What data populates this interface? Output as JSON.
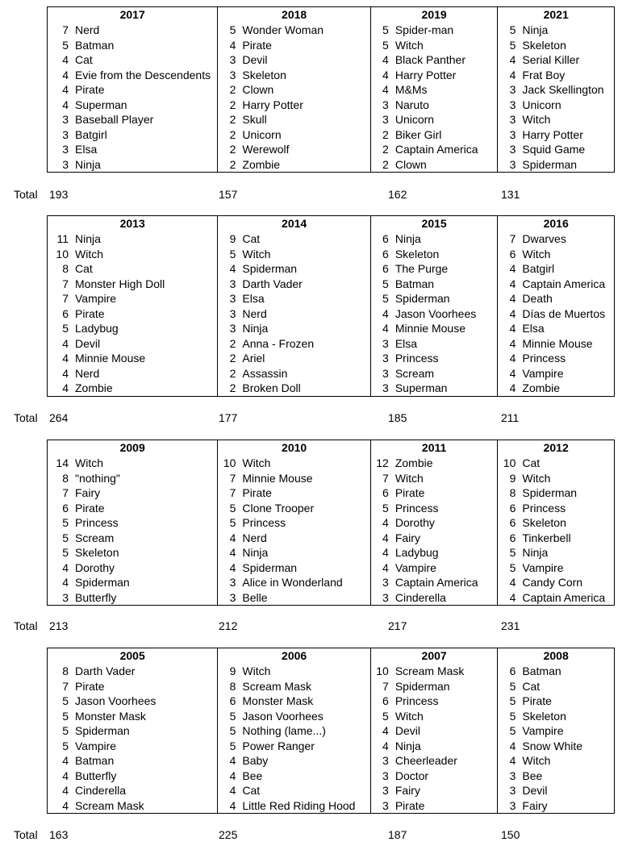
{
  "total_label": "Total",
  "blocks": [
    {
      "years": [
        {
          "year": "2017",
          "total": "193",
          "items": [
            [
              "7",
              "Nerd"
            ],
            [
              "5",
              "Batman"
            ],
            [
              "4",
              "Cat"
            ],
            [
              "4",
              "Evie from the Descendents"
            ],
            [
              "4",
              "Pirate"
            ],
            [
              "4",
              "Superman"
            ],
            [
              "3",
              "Baseball Player"
            ],
            [
              "3",
              "Batgirl"
            ],
            [
              "3",
              "Elsa"
            ],
            [
              "3",
              "Ninja"
            ]
          ]
        },
        {
          "year": "2018",
          "total": "157",
          "items": [
            [
              "5",
              "Wonder Woman"
            ],
            [
              "4",
              "Pirate"
            ],
            [
              "3",
              "Devil"
            ],
            [
              "3",
              "Skeleton"
            ],
            [
              "2",
              "Clown"
            ],
            [
              "2",
              "Harry Potter"
            ],
            [
              "2",
              "Skull"
            ],
            [
              "2",
              "Unicorn"
            ],
            [
              "2",
              "Werewolf"
            ],
            [
              "2",
              "Zombie"
            ]
          ]
        },
        {
          "year": "2019",
          "total": "162",
          "items": [
            [
              "5",
              "Spider-man"
            ],
            [
              "5",
              "Witch"
            ],
            [
              "4",
              "Black Panther"
            ],
            [
              "4",
              "Harry Potter"
            ],
            [
              "4",
              "M&Ms"
            ],
            [
              "3",
              "Naruto"
            ],
            [
              "3",
              "Unicorn"
            ],
            [
              "2",
              "Biker Girl"
            ],
            [
              "2",
              "Captain America"
            ],
            [
              "2",
              "Clown"
            ]
          ]
        },
        {
          "year": "2021",
          "total": "131",
          "items": [
            [
              "5",
              "Ninja"
            ],
            [
              "5",
              "Skeleton"
            ],
            [
              "4",
              "Serial Killer"
            ],
            [
              "4",
              "Frat Boy"
            ],
            [
              "3",
              "Jack Skellington"
            ],
            [
              "3",
              "Unicorn"
            ],
            [
              "3",
              "Witch"
            ],
            [
              "3",
              "Harry Potter"
            ],
            [
              "3",
              "Squid Game"
            ],
            [
              "3",
              "Spiderman"
            ]
          ]
        }
      ]
    },
    {
      "years": [
        {
          "year": "2013",
          "total": "264",
          "items": [
            [
              "11",
              "Ninja"
            ],
            [
              "10",
              "Witch"
            ],
            [
              "8",
              "Cat"
            ],
            [
              "7",
              "Monster High Doll"
            ],
            [
              "7",
              "Vampire"
            ],
            [
              "6",
              "Pirate"
            ],
            [
              "5",
              "Ladybug"
            ],
            [
              "4",
              "Devil"
            ],
            [
              "4",
              "Minnie Mouse"
            ],
            [
              "4",
              "Nerd"
            ],
            [
              "4",
              "Zombie"
            ]
          ]
        },
        {
          "year": "2014",
          "total": "177",
          "items": [
            [
              "9",
              "Cat"
            ],
            [
              "5",
              "Witch"
            ],
            [
              "4",
              "Spiderman"
            ],
            [
              "3",
              "Darth Vader"
            ],
            [
              "3",
              "Elsa"
            ],
            [
              "3",
              "Nerd"
            ],
            [
              "3",
              "Ninja"
            ],
            [
              "2",
              "Anna - Frozen"
            ],
            [
              "2",
              "Ariel"
            ],
            [
              "2",
              "Assassin"
            ],
            [
              "2",
              "Broken Doll"
            ]
          ]
        },
        {
          "year": "2015",
          "total": "185",
          "items": [
            [
              "6",
              "Ninja"
            ],
            [
              "6",
              "Skeleton"
            ],
            [
              "6",
              "The Purge"
            ],
            [
              "5",
              "Batman"
            ],
            [
              "5",
              "Spiderman"
            ],
            [
              "4",
              "Jason Voorhees"
            ],
            [
              "4",
              "Minnie Mouse"
            ],
            [
              "3",
              "Elsa"
            ],
            [
              "3",
              "Princess"
            ],
            [
              "3",
              "Scream"
            ],
            [
              "3",
              "Superman"
            ]
          ]
        },
        {
          "year": "2016",
          "total": "211",
          "items": [
            [
              "7",
              "Dwarves"
            ],
            [
              "6",
              "Witch"
            ],
            [
              "4",
              "Batgirl"
            ],
            [
              "4",
              "Captain America"
            ],
            [
              "4",
              "Death"
            ],
            [
              "4",
              "Días de Muertos"
            ],
            [
              "4",
              "Elsa"
            ],
            [
              "4",
              "Minnie Mouse"
            ],
            [
              "4",
              "Princess"
            ],
            [
              "4",
              "Vampire"
            ],
            [
              "4",
              "Zombie"
            ]
          ]
        }
      ]
    },
    {
      "years": [
        {
          "year": "2009",
          "total": "213",
          "items": [
            [
              "14",
              "Witch"
            ],
            [
              "8",
              "\"nothing\""
            ],
            [
              "7",
              "Fairy"
            ],
            [
              "6",
              "Pirate"
            ],
            [
              "5",
              "Princess"
            ],
            [
              "5",
              "Scream"
            ],
            [
              "5",
              "Skeleton"
            ],
            [
              "4",
              "Dorothy"
            ],
            [
              "4",
              "Spiderman"
            ],
            [
              "3",
              "Butterfly"
            ]
          ]
        },
        {
          "year": "2010",
          "total": "212",
          "items": [
            [
              "10",
              "Witch"
            ],
            [
              "7",
              "Minnie Mouse"
            ],
            [
              "7",
              "Pirate"
            ],
            [
              "5",
              "Clone Trooper"
            ],
            [
              "5",
              "Princess"
            ],
            [
              "4",
              "Nerd"
            ],
            [
              "4",
              "Ninja"
            ],
            [
              "4",
              "Spiderman"
            ],
            [
              "3",
              "Alice in Wonderland"
            ],
            [
              "3",
              "Belle"
            ]
          ]
        },
        {
          "year": "2011",
          "total": "217",
          "items": [
            [
              "12",
              "Zombie"
            ],
            [
              "7",
              "Witch"
            ],
            [
              "6",
              "Pirate"
            ],
            [
              "5",
              "Princess"
            ],
            [
              "4",
              "Dorothy"
            ],
            [
              "4",
              "Fairy"
            ],
            [
              "4",
              "Ladybug"
            ],
            [
              "4",
              "Vampire"
            ],
            [
              "3",
              "Captain America"
            ],
            [
              "3",
              "Cinderella"
            ]
          ]
        },
        {
          "year": "2012",
          "total": "231",
          "items": [
            [
              "10",
              "Cat"
            ],
            [
              "9",
              "Witch"
            ],
            [
              "8",
              "Spiderman"
            ],
            [
              "6",
              "Princess"
            ],
            [
              "6",
              "Skeleton"
            ],
            [
              "6",
              "Tinkerbell"
            ],
            [
              "5",
              "Ninja"
            ],
            [
              "5",
              "Vampire"
            ],
            [
              "4",
              "Candy Corn"
            ],
            [
              "4",
              "Captain America"
            ]
          ]
        }
      ]
    },
    {
      "years": [
        {
          "year": "2005",
          "total": "163",
          "items": [
            [
              "8",
              "Darth Vader"
            ],
            [
              "7",
              "Pirate"
            ],
            [
              "5",
              "Jason Voorhees"
            ],
            [
              "5",
              "Monster Mask"
            ],
            [
              "5",
              "Spiderman"
            ],
            [
              "5",
              "Vampire"
            ],
            [
              "4",
              "Batman"
            ],
            [
              "4",
              "Butterfly"
            ],
            [
              "4",
              "Cinderella"
            ],
            [
              "4",
              "Scream Mask"
            ]
          ]
        },
        {
          "year": "2006",
          "total": "225",
          "items": [
            [
              "9",
              "Witch"
            ],
            [
              "8",
              "Scream Mask"
            ],
            [
              "6",
              "Monster Mask"
            ],
            [
              "5",
              "Jason Voorhees"
            ],
            [
              "5",
              "Nothing (lame...)"
            ],
            [
              "5",
              "Power Ranger"
            ],
            [
              "4",
              "Baby"
            ],
            [
              "4",
              "Bee"
            ],
            [
              "4",
              "Cat"
            ],
            [
              "4",
              "Little Red Riding Hood"
            ]
          ]
        },
        {
          "year": "2007",
          "total": "187",
          "items": [
            [
              "10",
              "Scream Mask"
            ],
            [
              "7",
              "Spiderman"
            ],
            [
              "6",
              "Princess"
            ],
            [
              "5",
              "Witch"
            ],
            [
              "4",
              "Devil"
            ],
            [
              "4",
              "Ninja"
            ],
            [
              "3",
              "Cheerleader"
            ],
            [
              "3",
              "Doctor"
            ],
            [
              "3",
              "Fairy"
            ],
            [
              "3",
              "Pirate"
            ]
          ]
        },
        {
          "year": "2008",
          "total": "150",
          "items": [
            [
              "6",
              "Batman"
            ],
            [
              "5",
              "Cat"
            ],
            [
              "5",
              "Pirate"
            ],
            [
              "5",
              "Skeleton"
            ],
            [
              "5",
              "Vampire"
            ],
            [
              "4",
              "Snow White"
            ],
            [
              "4",
              "Witch"
            ],
            [
              "3",
              "Bee"
            ],
            [
              "3",
              "Devil"
            ],
            [
              "3",
              "Fairy"
            ]
          ]
        }
      ]
    }
  ]
}
